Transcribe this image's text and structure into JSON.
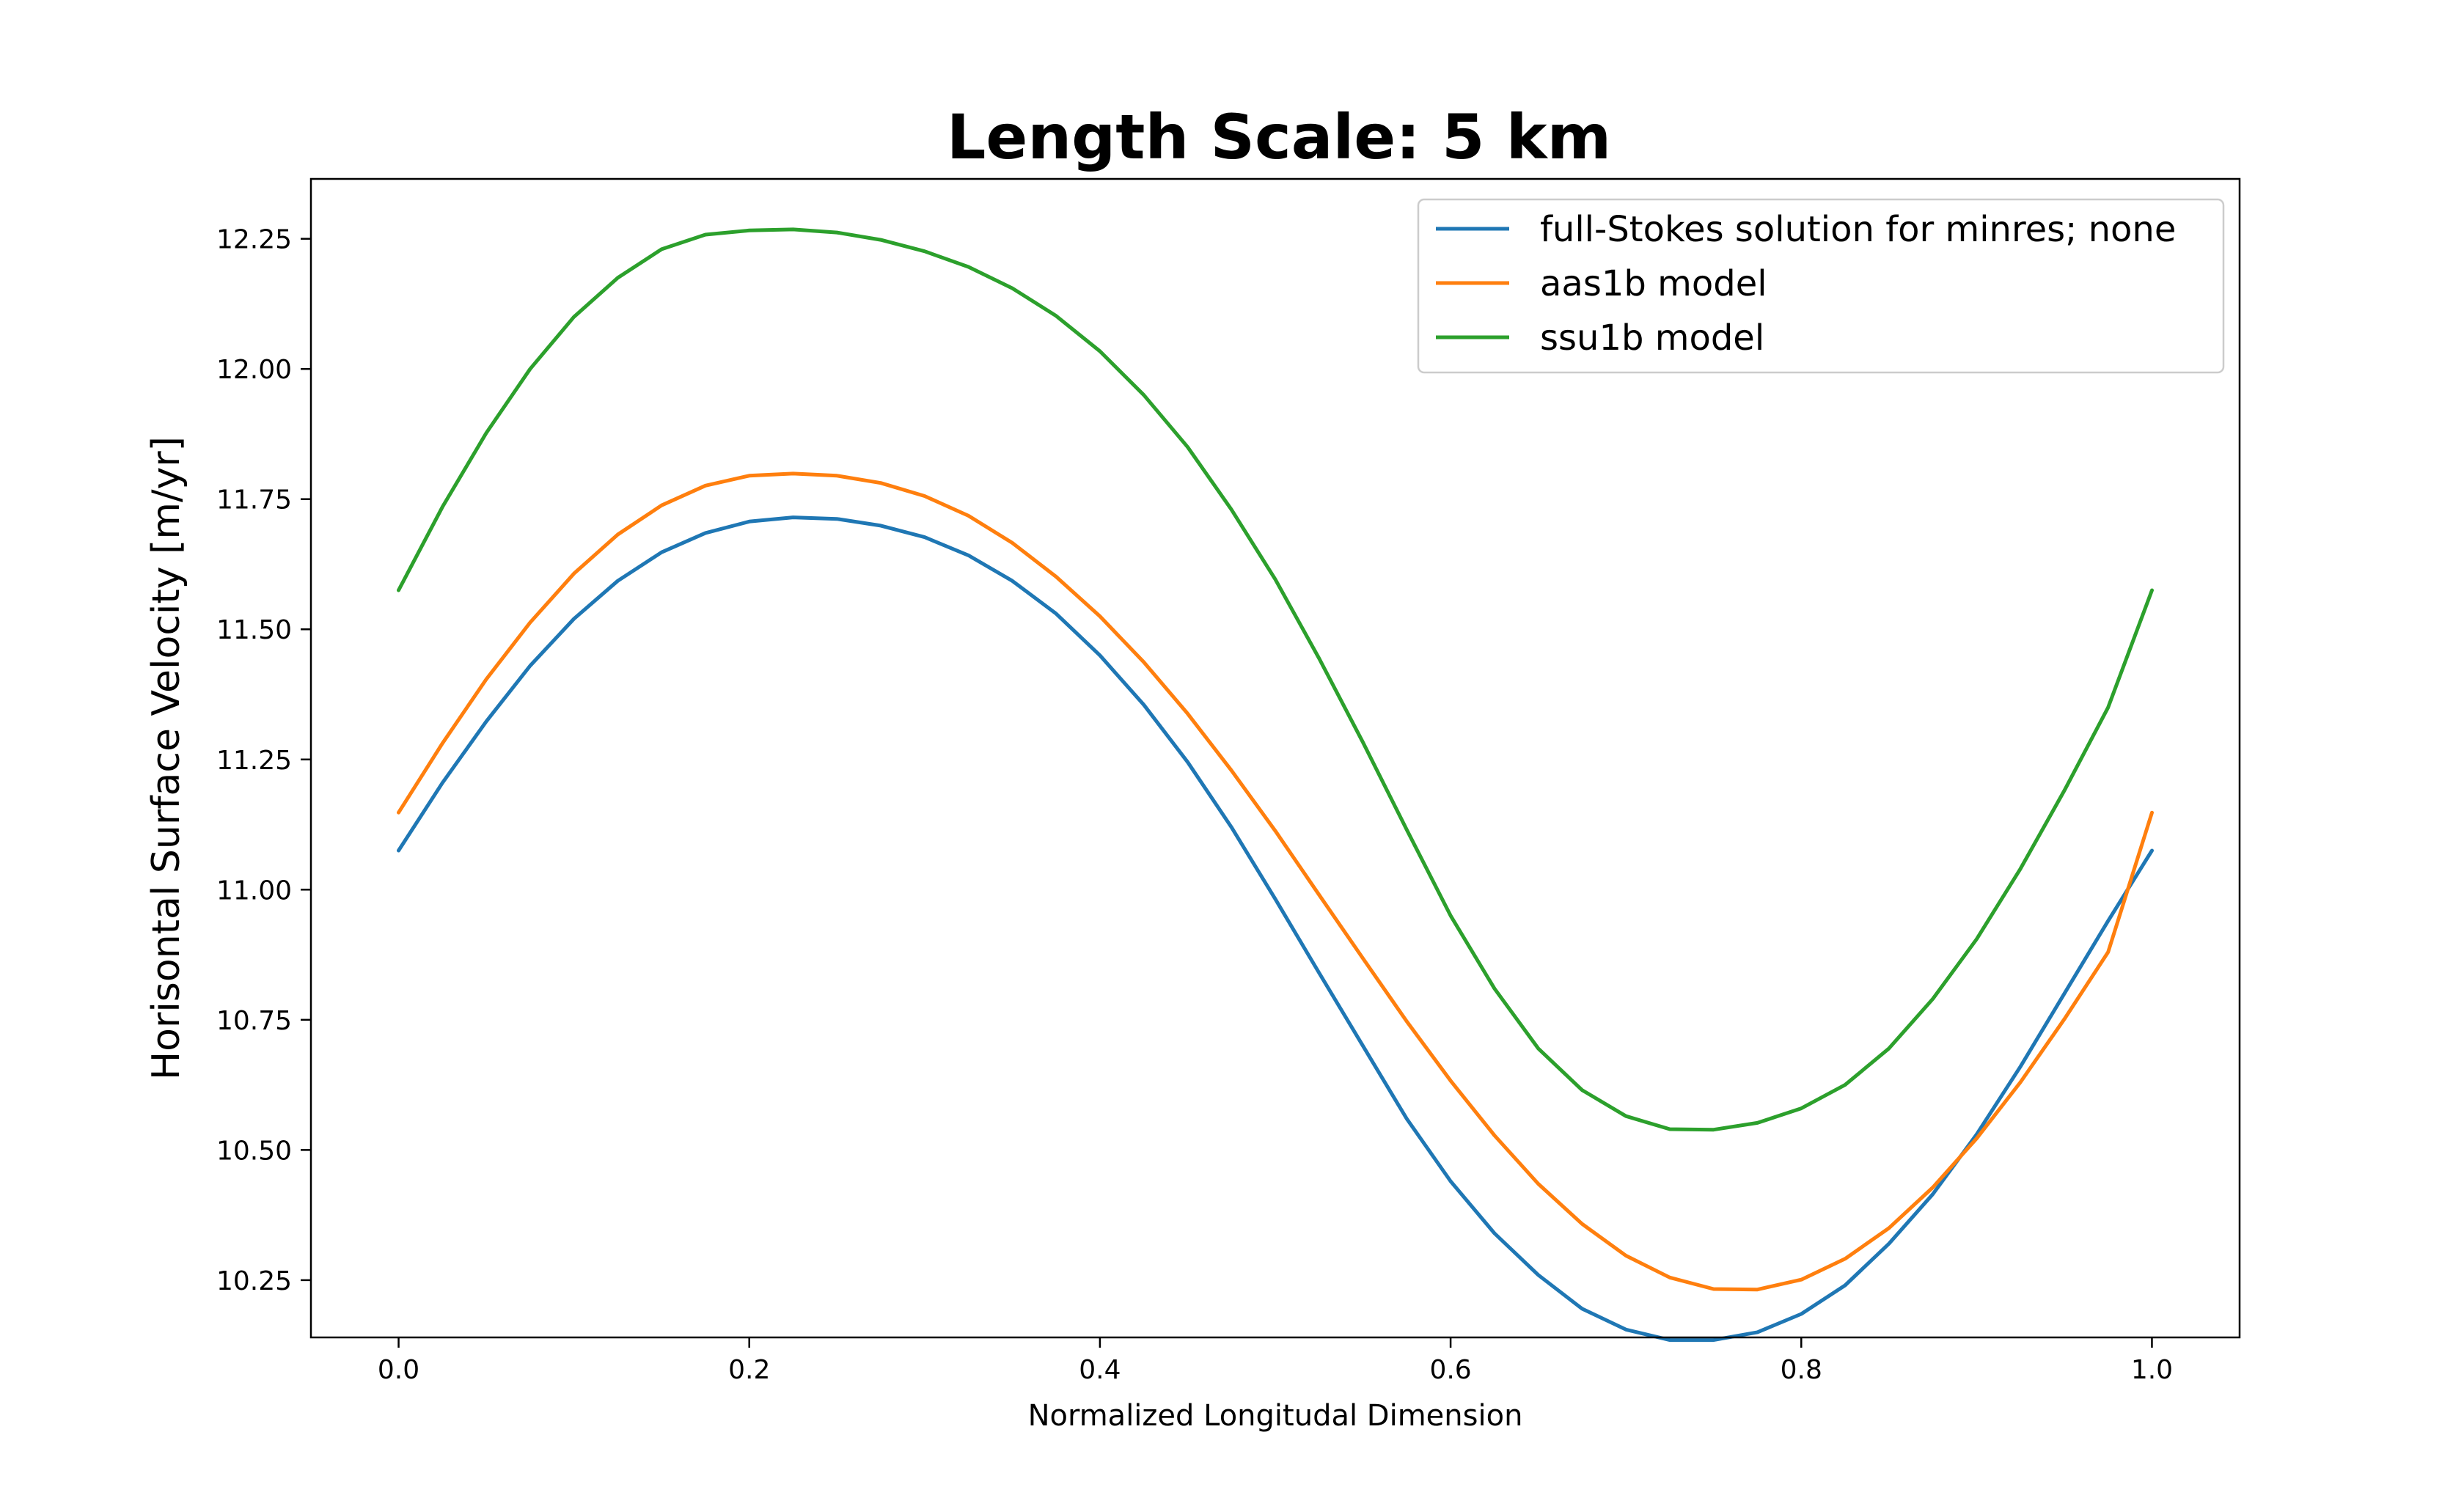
{
  "chart_data": {
    "type": "line",
    "title": "Length Scale: 5 km",
    "xlabel": "Normalized Longitudal Dimension",
    "ylabel": "Horisontal Surface Velocity [m/yr]",
    "xlim": [
      -0.05,
      1.05
    ],
    "ylim": [
      10.14,
      12.365
    ],
    "xticks": [
      0.0,
      0.2,
      0.4,
      0.6,
      0.8,
      1.0
    ],
    "xtick_labels": [
      "0.0",
      "0.2",
      "0.4",
      "0.6",
      "0.8",
      "1.0"
    ],
    "yticks": [
      10.25,
      10.5,
      10.75,
      11.0,
      11.25,
      11.5,
      11.75,
      12.0,
      12.25
    ],
    "ytick_labels": [
      "10.25",
      "10.50",
      "10.75",
      "11.00",
      "11.25",
      "11.50",
      "11.75",
      "12.00",
      "12.25"
    ],
    "grid": false,
    "legend_position": "top-right",
    "series": [
      {
        "name": "full-Stokes solution for minres; none",
        "color": "#1f77b4",
        "x": [
          0.0,
          0.025,
          0.05,
          0.075,
          0.1,
          0.125,
          0.15,
          0.175,
          0.2,
          0.225,
          0.25,
          0.275,
          0.3,
          0.325,
          0.35,
          0.375,
          0.4,
          0.425,
          0.45,
          0.475,
          0.5,
          0.525,
          0.55,
          0.575,
          0.6,
          0.625,
          0.65,
          0.675,
          0.7,
          0.725,
          0.75,
          0.775,
          0.8,
          0.825,
          0.85,
          0.875,
          0.9,
          0.925,
          0.95,
          0.975,
          1.0
        ],
        "y": [
          11.075,
          11.205,
          11.323,
          11.43,
          11.52,
          11.593,
          11.648,
          11.685,
          11.707,
          11.715,
          11.712,
          11.699,
          11.677,
          11.642,
          11.593,
          11.53,
          11.45,
          11.355,
          11.245,
          11.12,
          10.982,
          10.84,
          10.7,
          10.56,
          10.44,
          10.34,
          10.26,
          10.195,
          10.155,
          10.135,
          10.135,
          10.15,
          10.185,
          10.24,
          10.32,
          10.415,
          10.53,
          10.66,
          10.8,
          10.94,
          11.075
        ]
      },
      {
        "name": "aas1b model",
        "color": "#ff7f0e",
        "x": [
          0.0,
          0.025,
          0.05,
          0.075,
          0.1,
          0.125,
          0.15,
          0.175,
          0.2,
          0.225,
          0.25,
          0.275,
          0.3,
          0.325,
          0.35,
          0.375,
          0.4,
          0.425,
          0.45,
          0.475,
          0.5,
          0.525,
          0.55,
          0.575,
          0.6,
          0.625,
          0.65,
          0.675,
          0.7,
          0.725,
          0.75,
          0.775,
          0.8,
          0.825,
          0.85,
          0.875,
          0.9,
          0.925,
          0.95,
          0.975,
          1.0
        ],
        "y": [
          11.148,
          11.281,
          11.404,
          11.513,
          11.607,
          11.682,
          11.738,
          11.776,
          11.795,
          11.799,
          11.795,
          11.781,
          11.756,
          11.718,
          11.666,
          11.601,
          11.525,
          11.437,
          11.338,
          11.229,
          11.113,
          10.99,
          10.868,
          10.747,
          10.633,
          10.528,
          10.435,
          10.358,
          10.297,
          10.255,
          10.233,
          10.232,
          10.251,
          10.291,
          10.35,
          10.428,
          10.522,
          10.63,
          10.751,
          10.88,
          11.148
        ]
      },
      {
        "name": "ssu1b model",
        "color": "#2ca02c",
        "x": [
          0.0,
          0.025,
          0.05,
          0.075,
          0.1,
          0.125,
          0.15,
          0.175,
          0.2,
          0.225,
          0.25,
          0.275,
          0.3,
          0.325,
          0.35,
          0.375,
          0.4,
          0.425,
          0.45,
          0.475,
          0.5,
          0.525,
          0.55,
          0.575,
          0.6,
          0.625,
          0.65,
          0.675,
          0.7,
          0.725,
          0.75,
          0.775,
          0.8,
          0.825,
          0.85,
          0.875,
          0.9,
          0.925,
          0.95,
          0.975,
          1.0
        ],
        "y": [
          11.575,
          11.735,
          11.877,
          12.0,
          12.1,
          12.175,
          12.23,
          12.258,
          12.266,
          12.268,
          12.262,
          12.248,
          12.226,
          12.196,
          12.155,
          12.102,
          12.034,
          11.95,
          11.85,
          11.73,
          11.596,
          11.444,
          11.283,
          11.115,
          10.95,
          10.81,
          10.695,
          10.615,
          10.565,
          10.54,
          10.539,
          10.552,
          10.58,
          10.625,
          10.695,
          10.79,
          10.905,
          11.04,
          11.19,
          11.35,
          11.575
        ]
      }
    ]
  }
}
